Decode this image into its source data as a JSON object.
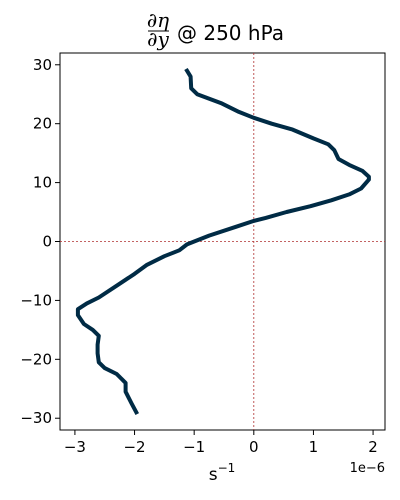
{
  "chart_data": {
    "type": "line",
    "title": {
      "fraction_num": "∂η",
      "fraction_den": "∂y",
      "suffix": "@ 250 hPa"
    },
    "xlabel_base": "s",
    "xlabel_exp": "−1",
    "x_offset_label": "1e−6",
    "xlim": [
      -3.25,
      2.2
    ],
    "ylim": [
      -32,
      32
    ],
    "xticks": [
      -3,
      -2,
      -1,
      0,
      1,
      2
    ],
    "xtick_labels": [
      "−3",
      "−2",
      "−1",
      "0",
      "1",
      "2"
    ],
    "yticks": [
      -30,
      -20,
      -10,
      0,
      10,
      20,
      30
    ],
    "ytick_labels": [
      "−30",
      "−20",
      "−10",
      "0",
      "10",
      "20",
      "30"
    ],
    "reference_lines": {
      "x": 0,
      "y": 0,
      "color": "#b03030"
    },
    "series": [
      {
        "color": "#002b45",
        "points": [
          [
            -1.12,
            29
          ],
          [
            -1.06,
            28
          ],
          [
            -1.05,
            26
          ],
          [
            -0.95,
            25
          ],
          [
            -0.55,
            23.5
          ],
          [
            -0.25,
            22
          ],
          [
            0.0,
            21
          ],
          [
            0.3,
            20
          ],
          [
            0.65,
            19
          ],
          [
            1.0,
            17.5
          ],
          [
            1.25,
            16.5
          ],
          [
            1.35,
            15.5
          ],
          [
            1.42,
            14
          ],
          [
            1.6,
            13
          ],
          [
            1.82,
            12
          ],
          [
            1.93,
            11
          ],
          [
            1.93,
            10.5
          ],
          [
            1.8,
            9
          ],
          [
            1.6,
            8
          ],
          [
            1.3,
            7
          ],
          [
            0.95,
            6
          ],
          [
            0.55,
            5
          ],
          [
            0.2,
            4
          ],
          [
            0.0,
            3.5
          ],
          [
            -0.3,
            2.5
          ],
          [
            -0.75,
            1
          ],
          [
            -1.0,
            0
          ],
          [
            -1.12,
            -0.5
          ],
          [
            -1.25,
            -1.5
          ],
          [
            -1.5,
            -2.5
          ],
          [
            -1.8,
            -4
          ],
          [
            -2.0,
            -5.5
          ],
          [
            -2.3,
            -7.5
          ],
          [
            -2.6,
            -9.5
          ],
          [
            -2.8,
            -10.5
          ],
          [
            -2.95,
            -11.5
          ],
          [
            -2.95,
            -12.5
          ],
          [
            -2.85,
            -14
          ],
          [
            -2.7,
            -15
          ],
          [
            -2.6,
            -16
          ],
          [
            -2.62,
            -17.5
          ],
          [
            -2.62,
            -19
          ],
          [
            -2.6,
            -20.5
          ],
          [
            -2.5,
            -21.5
          ],
          [
            -2.3,
            -22.5
          ],
          [
            -2.15,
            -24
          ],
          [
            -2.15,
            -25.5
          ],
          [
            -2.05,
            -27.5
          ],
          [
            -1.97,
            -29
          ]
        ]
      }
    ],
    "grid": false,
    "axis_color": "#000000"
  }
}
